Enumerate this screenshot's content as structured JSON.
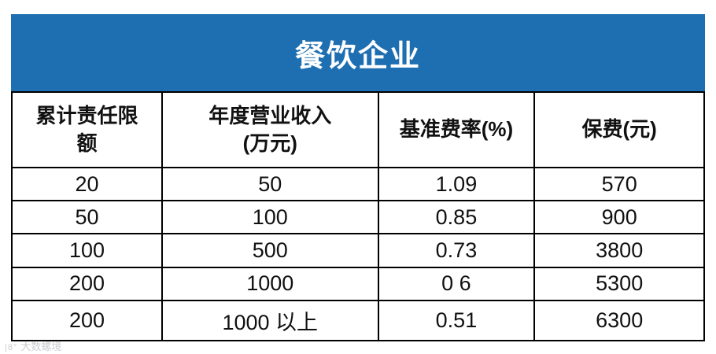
{
  "chart_data": {
    "type": "table",
    "title": "餐饮企业",
    "columns": [
      "累计责任限\n额",
      "年度营业收入\n(万元)",
      "基准费率(%)",
      "保费(元)"
    ],
    "rows": [
      [
        "20",
        "50",
        "1.09",
        "570"
      ],
      [
        "50",
        "100",
        "0.85",
        "900"
      ],
      [
        "100",
        "500",
        "0.73",
        "3800"
      ],
      [
        "200",
        "1000",
        "0 6",
        "5300"
      ],
      [
        "200",
        "1000 以上",
        "0.51",
        "6300"
      ]
    ]
  },
  "colors": {
    "header_blue": "#1e6fb2",
    "border_black": "#000000"
  },
  "watermark": {
    "logo": "|8°",
    "text": "大数螺境"
  }
}
